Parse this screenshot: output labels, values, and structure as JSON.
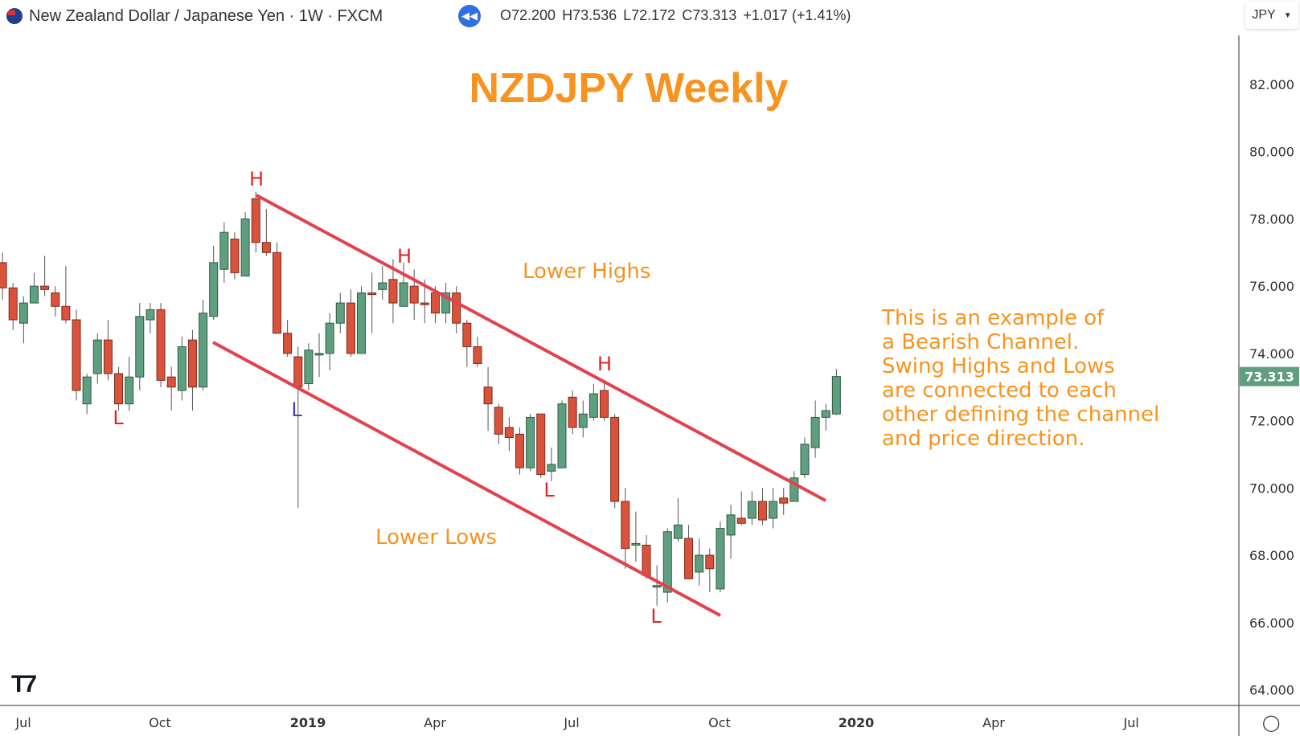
{
  "header": {
    "symbol_title": "New Zealand Dollar / Japanese Yen · 1W · FXCM",
    "flag_icon": "nz-flag-icon",
    "replay_icon": "rewind-icon",
    "ohlc": {
      "open": "O72.200",
      "high": "H73.536",
      "low": "L72.172",
      "close": "C73.313",
      "change": "+1.017 (+1.41%)"
    },
    "currency": "JPY"
  },
  "colors": {
    "up": "#5f9e7e",
    "down": "#d9533c",
    "channel": "#e0434e",
    "annotation": "#f7931e",
    "swing_label": "#e02424",
    "swing_label_alt": "#4b3fb0",
    "last_price": "#5f9e7e"
  },
  "chart_data": {
    "type": "candlestick",
    "title": "NZDJPY Weekly",
    "interval": "1W",
    "ylim": [
      64,
      82
    ],
    "y_ticks": [
      "82.000",
      "80.000",
      "78.000",
      "76.000",
      "74.000",
      "72.000",
      "70.000",
      "68.000",
      "66.000",
      "64.000"
    ],
    "x_ticks": [
      "Jul",
      "Oct",
      "2019",
      "Apr",
      "Jul",
      "Oct",
      "2020",
      "Apr",
      "Jul"
    ],
    "last_price": "73.313",
    "candles": [
      [
        76.7,
        77.0,
        75.6,
        75.95
      ],
      [
        75.95,
        76.1,
        74.7,
        75.0
      ],
      [
        74.9,
        75.7,
        74.3,
        75.5
      ],
      [
        75.5,
        76.4,
        75.5,
        76.0
      ],
      [
        76.0,
        76.9,
        75.7,
        75.9
      ],
      [
        75.8,
        76.0,
        75.1,
        75.4
      ],
      [
        75.4,
        76.6,
        74.9,
        75.0
      ],
      [
        75.0,
        75.3,
        72.6,
        72.9
      ],
      [
        72.5,
        73.4,
        72.2,
        73.3
      ],
      [
        73.4,
        74.6,
        73.1,
        74.4
      ],
      [
        74.4,
        75.0,
        73.2,
        73.4
      ],
      [
        73.4,
        73.6,
        72.3,
        72.5
      ],
      [
        72.5,
        73.9,
        72.3,
        73.3
      ],
      [
        73.3,
        75.5,
        72.9,
        75.1
      ],
      [
        75.0,
        75.5,
        74.6,
        75.3
      ],
      [
        75.3,
        75.5,
        73.0,
        73.2
      ],
      [
        73.3,
        73.6,
        72.3,
        73.0
      ],
      [
        72.9,
        74.5,
        72.6,
        74.2
      ],
      [
        74.4,
        74.7,
        72.3,
        73.0
      ],
      [
        73.0,
        75.6,
        72.9,
        75.2
      ],
      [
        75.1,
        77.2,
        75.0,
        76.7
      ],
      [
        76.5,
        77.9,
        76.1,
        77.6
      ],
      [
        77.4,
        77.6,
        76.2,
        76.4
      ],
      [
        76.3,
        78.2,
        76.3,
        78.0
      ],
      [
        78.6,
        78.8,
        77.0,
        77.3
      ],
      [
        77.3,
        78.3,
        76.9,
        77.0
      ],
      [
        77.0,
        77.3,
        74.6,
        74.6
      ],
      [
        74.6,
        75.0,
        73.9,
        74.0
      ],
      [
        73.9,
        74.2,
        69.4,
        73.0
      ],
      [
        73.1,
        74.3,
        72.9,
        74.1
      ],
      [
        74.0,
        74.6,
        73.3,
        74.0
      ],
      [
        74.0,
        75.2,
        73.5,
        74.9
      ],
      [
        74.9,
        75.8,
        74.6,
        75.5
      ],
      [
        75.5,
        75.9,
        73.9,
        74.0
      ],
      [
        74.0,
        76.0,
        74.0,
        75.8
      ],
      [
        75.8,
        76.4,
        74.6,
        75.75
      ],
      [
        75.9,
        76.6,
        75.6,
        76.1
      ],
      [
        76.2,
        76.8,
        74.9,
        75.5
      ],
      [
        75.4,
        76.7,
        75.4,
        76.1
      ],
      [
        76.0,
        76.5,
        75.0,
        75.5
      ],
      [
        75.5,
        76.2,
        74.9,
        75.45
      ],
      [
        75.8,
        76.0,
        74.9,
        75.2
      ],
      [
        75.2,
        76.1,
        74.9,
        75.8
      ],
      [
        75.8,
        76.0,
        74.6,
        74.9
      ],
      [
        74.9,
        75.0,
        73.6,
        74.2
      ],
      [
        74.2,
        74.5,
        73.6,
        73.7
      ],
      [
        73.0,
        73.6,
        71.7,
        72.5
      ],
      [
        72.4,
        72.5,
        71.3,
        71.6
      ],
      [
        71.8,
        72.1,
        71.1,
        71.5
      ],
      [
        71.6,
        71.8,
        70.4,
        70.6
      ],
      [
        70.6,
        72.2,
        70.5,
        72.1
      ],
      [
        72.2,
        72.2,
        70.3,
        70.4
      ],
      [
        70.5,
        71.2,
        70.2,
        70.7
      ],
      [
        70.6,
        72.6,
        70.6,
        72.5
      ],
      [
        72.7,
        72.9,
        71.6,
        71.8
      ],
      [
        71.8,
        72.6,
        71.5,
        72.2
      ],
      [
        72.1,
        73.1,
        72.0,
        72.8
      ],
      [
        72.9,
        73.2,
        72.0,
        72.1
      ],
      [
        72.1,
        72.2,
        69.4,
        69.6
      ],
      [
        69.6,
        70.0,
        67.6,
        68.2
      ],
      [
        68.3,
        69.3,
        67.8,
        68.35
      ],
      [
        68.3,
        68.6,
        67.3,
        67.4
      ],
      [
        67.05,
        67.7,
        66.5,
        67.1
      ],
      [
        66.9,
        68.8,
        66.6,
        68.7
      ],
      [
        68.5,
        69.7,
        68.4,
        68.9
      ],
      [
        68.5,
        68.9,
        67.3,
        67.3
      ],
      [
        67.5,
        68.5,
        67.1,
        68.0
      ],
      [
        68.0,
        68.2,
        66.9,
        67.6
      ],
      [
        67.0,
        69.0,
        66.9,
        68.8
      ],
      [
        68.6,
        69.5,
        67.9,
        69.2
      ],
      [
        69.1,
        69.9,
        68.9,
        68.95
      ],
      [
        69.1,
        69.9,
        68.9,
        69.6
      ],
      [
        69.6,
        70.0,
        68.9,
        69.05
      ],
      [
        69.1,
        70.0,
        68.8,
        69.6
      ],
      [
        69.7,
        70.0,
        69.2,
        69.55
      ],
      [
        69.6,
        70.5,
        69.6,
        70.3
      ],
      [
        70.4,
        71.5,
        70.3,
        71.3
      ],
      [
        71.2,
        72.6,
        70.9,
        72.1
      ],
      [
        72.1,
        72.5,
        71.7,
        72.3
      ],
      [
        72.2,
        73.536,
        72.172,
        73.313
      ]
    ],
    "annotations": {
      "lower_highs": "Lower Highs",
      "lower_lows": "Lower Lows",
      "swing_high": "H",
      "swing_low": "L",
      "note_lines": [
        "This is an example of",
        "a Bearish Channel.",
        "Swing Highs and Lows",
        "are connected to each",
        "other defining the channel",
        "and price direction."
      ]
    }
  },
  "footer": {
    "logo": "TV",
    "settings_icon": "settings-icon"
  }
}
